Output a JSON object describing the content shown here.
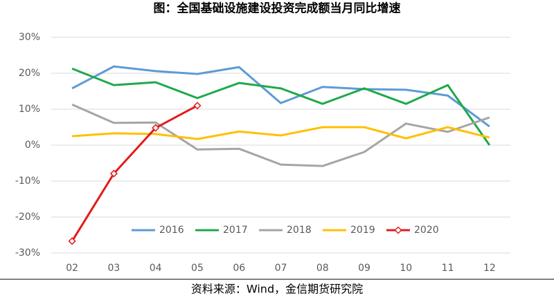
{
  "chart_data": {
    "type": "line",
    "title": "图：全国基础设施建设投资完成额当月同比增速",
    "source": "资料来源：Wind，金信期货研究院",
    "categories": [
      "02",
      "03",
      "04",
      "05",
      "06",
      "07",
      "08",
      "09",
      "10",
      "11",
      "12"
    ],
    "series": [
      {
        "name": "2016",
        "color": "#5b9bd5",
        "values": [
          15.8,
          21.9,
          20.6,
          19.8,
          21.7,
          11.7,
          16.2,
          15.6,
          15.4,
          13.8,
          5.2
        ]
      },
      {
        "name": "2017",
        "color": "#1ea94a",
        "values": [
          21.3,
          16.7,
          17.5,
          13.1,
          17.3,
          15.8,
          11.5,
          15.8,
          11.5,
          16.7,
          0
        ]
      },
      {
        "name": "2018",
        "color": "#a5a5a5",
        "values": [
          11.3,
          6.2,
          6.3,
          -1.2,
          -1.0,
          -5.4,
          -5.8,
          -1.9,
          6.0,
          3.7,
          7.7
        ]
      },
      {
        "name": "2019",
        "color": "#ffc000",
        "values": [
          2.5,
          3.3,
          3.1,
          1.7,
          3.8,
          2.7,
          5.0,
          5.0,
          1.9,
          5.0,
          2.1
        ]
      },
      {
        "name": "2020",
        "color": "#e31a1c",
        "marker": "diamond",
        "values": [
          -26.7,
          -7.9,
          4.8,
          11.0,
          null,
          null,
          null,
          null,
          null,
          null,
          null
        ]
      }
    ],
    "ylim": [
      -30,
      30
    ],
    "yticks": [
      {
        "value": -30,
        "label": "-30%"
      },
      {
        "value": -20,
        "label": "-20%"
      },
      {
        "value": -10,
        "label": "-10%"
      },
      {
        "value": 0,
        "label": "0%"
      },
      {
        "value": 10,
        "label": "10%"
      },
      {
        "value": 20,
        "label": "20%"
      },
      {
        "value": 30,
        "label": "30%"
      }
    ],
    "grid": true,
    "legend": "bottom"
  }
}
